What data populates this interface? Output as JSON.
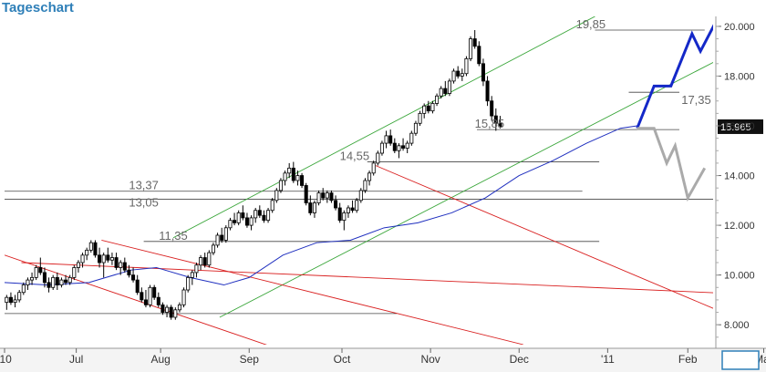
{
  "title": "Tageschart",
  "colors": {
    "title": "#2e7fb8",
    "candle_up": "#ffffff",
    "candle_down": "#000000",
    "ma": "#1f2fbf",
    "green_channel": "#3aa63a",
    "red_channel": "#d92020",
    "support_lines": "#444444",
    "projection_bull": "#1428c8",
    "projection_bear": "#aaaaaa",
    "last_price_box": "#111111"
  },
  "chart_data": {
    "type": "candlestick",
    "title": "Tageschart",
    "x_tick_labels": [
      "'10",
      "Jul",
      "Aug",
      "Sep",
      "Oct",
      "Nov",
      "Dec",
      "'11",
      "Feb",
      "Mar"
    ],
    "y_tick_labels": [
      "8.000",
      "10.000",
      "12.000",
      "14.000",
      "16.000",
      "18.000",
      "20.000"
    ],
    "y_ticks": [
      8,
      10,
      12,
      14,
      16,
      18,
      20
    ],
    "ylim": [
      7.2,
      20.4
    ],
    "xlim": [
      0,
      168
    ],
    "grid": false,
    "last_price_label": "15.965",
    "last_price": 15.965,
    "ohlc": [
      {
        "o": 8.9,
        "h": 9.2,
        "l": 8.6,
        "c": 9.1
      },
      {
        "o": 9.1,
        "h": 9.3,
        "l": 8.8,
        "c": 8.9
      },
      {
        "o": 8.9,
        "h": 9.2,
        "l": 8.7,
        "c": 9.0
      },
      {
        "o": 9.0,
        "h": 9.4,
        "l": 8.9,
        "c": 9.3
      },
      {
        "o": 9.3,
        "h": 9.7,
        "l": 9.2,
        "c": 9.6
      },
      {
        "o": 9.6,
        "h": 9.9,
        "l": 9.4,
        "c": 9.8
      },
      {
        "o": 9.8,
        "h": 10.1,
        "l": 9.6,
        "c": 9.9
      },
      {
        "o": 9.9,
        "h": 10.4,
        "l": 9.8,
        "c": 10.3
      },
      {
        "o": 10.3,
        "h": 10.7,
        "l": 10.0,
        "c": 10.1
      },
      {
        "o": 10.1,
        "h": 10.3,
        "l": 9.5,
        "c": 9.7
      },
      {
        "o": 9.7,
        "h": 9.9,
        "l": 9.3,
        "c": 9.5
      },
      {
        "o": 9.5,
        "h": 10.0,
        "l": 9.4,
        "c": 9.9
      },
      {
        "o": 9.9,
        "h": 10.1,
        "l": 9.4,
        "c": 9.6
      },
      {
        "o": 9.6,
        "h": 9.9,
        "l": 9.5,
        "c": 9.8
      },
      {
        "o": 9.8,
        "h": 10.0,
        "l": 9.6,
        "c": 9.7
      },
      {
        "o": 9.7,
        "h": 10.0,
        "l": 9.6,
        "c": 9.9
      },
      {
        "o": 9.9,
        "h": 10.4,
        "l": 9.8,
        "c": 10.3
      },
      {
        "o": 10.3,
        "h": 10.6,
        "l": 10.1,
        "c": 10.5
      },
      {
        "o": 10.5,
        "h": 10.9,
        "l": 10.3,
        "c": 10.8
      },
      {
        "o": 10.8,
        "h": 11.1,
        "l": 10.6,
        "c": 11.0
      },
      {
        "o": 11.0,
        "h": 11.4,
        "l": 10.9,
        "c": 11.3
      },
      {
        "o": 11.3,
        "h": 11.4,
        "l": 10.7,
        "c": 10.8
      },
      {
        "o": 10.8,
        "h": 11.1,
        "l": 10.3,
        "c": 10.5
      },
      {
        "o": 10.5,
        "h": 10.9,
        "l": 9.9,
        "c": 10.8
      },
      {
        "o": 10.8,
        "h": 11.1,
        "l": 10.5,
        "c": 10.6
      },
      {
        "o": 10.6,
        "h": 10.9,
        "l": 10.4,
        "c": 10.7
      },
      {
        "o": 10.7,
        "h": 10.9,
        "l": 10.2,
        "c": 10.3
      },
      {
        "o": 10.3,
        "h": 10.6,
        "l": 10.0,
        "c": 10.5
      },
      {
        "o": 10.5,
        "h": 10.7,
        "l": 10.1,
        "c": 10.2
      },
      {
        "o": 10.2,
        "h": 10.4,
        "l": 9.9,
        "c": 10.0
      },
      {
        "o": 10.0,
        "h": 10.3,
        "l": 9.7,
        "c": 9.8
      },
      {
        "o": 9.8,
        "h": 10.0,
        "l": 9.2,
        "c": 9.3
      },
      {
        "o": 9.3,
        "h": 9.5,
        "l": 8.9,
        "c": 9.0
      },
      {
        "o": 9.0,
        "h": 9.4,
        "l": 8.7,
        "c": 8.8
      },
      {
        "o": 8.8,
        "h": 9.6,
        "l": 8.7,
        "c": 9.5
      },
      {
        "o": 9.5,
        "h": 9.6,
        "l": 9.0,
        "c": 9.1
      },
      {
        "o": 9.1,
        "h": 9.3,
        "l": 8.7,
        "c": 8.8
      },
      {
        "o": 8.8,
        "h": 8.9,
        "l": 8.4,
        "c": 8.5
      },
      {
        "o": 8.5,
        "h": 8.8,
        "l": 8.3,
        "c": 8.7
      },
      {
        "o": 8.7,
        "h": 8.8,
        "l": 8.2,
        "c": 8.3
      },
      {
        "o": 8.3,
        "h": 8.7,
        "l": 8.2,
        "c": 8.6
      },
      {
        "o": 8.6,
        "h": 8.9,
        "l": 8.5,
        "c": 8.8
      },
      {
        "o": 8.8,
        "h": 9.5,
        "l": 8.7,
        "c": 9.4
      },
      {
        "o": 9.4,
        "h": 10.0,
        "l": 9.3,
        "c": 9.9
      },
      {
        "o": 9.9,
        "h": 10.2,
        "l": 9.6,
        "c": 10.1
      },
      {
        "o": 10.1,
        "h": 10.5,
        "l": 9.9,
        "c": 10.4
      },
      {
        "o": 10.4,
        "h": 10.8,
        "l": 10.2,
        "c": 10.7
      },
      {
        "o": 10.7,
        "h": 10.9,
        "l": 10.3,
        "c": 10.4
      },
      {
        "o": 10.4,
        "h": 11.0,
        "l": 10.3,
        "c": 10.9
      },
      {
        "o": 10.9,
        "h": 11.3,
        "l": 10.8,
        "c": 11.2
      },
      {
        "o": 11.2,
        "h": 11.7,
        "l": 11.1,
        "c": 11.6
      },
      {
        "o": 11.6,
        "h": 11.9,
        "l": 11.3,
        "c": 11.4
      },
      {
        "o": 11.4,
        "h": 12.0,
        "l": 11.3,
        "c": 11.9
      },
      {
        "o": 11.9,
        "h": 12.3,
        "l": 11.8,
        "c": 12.2
      },
      {
        "o": 12.2,
        "h": 12.5,
        "l": 12.0,
        "c": 12.1
      },
      {
        "o": 12.1,
        "h": 12.6,
        "l": 12.0,
        "c": 12.5
      },
      {
        "o": 12.5,
        "h": 12.8,
        "l": 12.2,
        "c": 12.3
      },
      {
        "o": 12.3,
        "h": 12.5,
        "l": 11.9,
        "c": 12.0
      },
      {
        "o": 12.0,
        "h": 12.4,
        "l": 11.8,
        "c": 12.3
      },
      {
        "o": 12.3,
        "h": 12.7,
        "l": 12.1,
        "c": 12.6
      },
      {
        "o": 12.6,
        "h": 12.8,
        "l": 12.3,
        "c": 12.4
      },
      {
        "o": 12.4,
        "h": 12.6,
        "l": 12.1,
        "c": 12.2
      },
      {
        "o": 12.2,
        "h": 12.7,
        "l": 12.1,
        "c": 12.6
      },
      {
        "o": 12.6,
        "h": 13.1,
        "l": 12.5,
        "c": 13.0
      },
      {
        "o": 13.0,
        "h": 13.5,
        "l": 12.9,
        "c": 13.4
      },
      {
        "o": 13.4,
        "h": 13.9,
        "l": 13.3,
        "c": 13.8
      },
      {
        "o": 13.8,
        "h": 14.2,
        "l": 13.6,
        "c": 14.1
      },
      {
        "o": 14.1,
        "h": 14.5,
        "l": 13.9,
        "c": 14.3
      },
      {
        "o": 14.3,
        "h": 14.55,
        "l": 13.7,
        "c": 13.8
      },
      {
        "o": 13.8,
        "h": 14.2,
        "l": 13.6,
        "c": 14.0
      },
      {
        "o": 14.0,
        "h": 14.1,
        "l": 13.5,
        "c": 13.6
      },
      {
        "o": 13.6,
        "h": 13.7,
        "l": 12.8,
        "c": 12.9
      },
      {
        "o": 12.9,
        "h": 13.2,
        "l": 12.4,
        "c": 12.5
      },
      {
        "o": 12.5,
        "h": 13.0,
        "l": 12.3,
        "c": 12.9
      },
      {
        "o": 12.9,
        "h": 13.4,
        "l": 12.8,
        "c": 13.3
      },
      {
        "o": 13.3,
        "h": 13.5,
        "l": 13.0,
        "c": 13.1
      },
      {
        "o": 13.1,
        "h": 13.4,
        "l": 12.9,
        "c": 13.3
      },
      {
        "o": 13.3,
        "h": 13.4,
        "l": 12.9,
        "c": 13.0
      },
      {
        "o": 13.0,
        "h": 13.2,
        "l": 12.6,
        "c": 12.7
      },
      {
        "o": 12.7,
        "h": 12.9,
        "l": 12.1,
        "c": 12.2
      },
      {
        "o": 12.2,
        "h": 12.6,
        "l": 11.8,
        "c": 12.5
      },
      {
        "o": 12.5,
        "h": 12.8,
        "l": 12.3,
        "c": 12.7
      },
      {
        "o": 12.7,
        "h": 13.0,
        "l": 12.5,
        "c": 12.6
      },
      {
        "o": 12.6,
        "h": 13.1,
        "l": 12.5,
        "c": 13.0
      },
      {
        "o": 13.0,
        "h": 13.5,
        "l": 12.9,
        "c": 13.4
      },
      {
        "o": 13.4,
        "h": 13.9,
        "l": 13.3,
        "c": 13.8
      },
      {
        "o": 13.8,
        "h": 14.2,
        "l": 13.6,
        "c": 14.1
      },
      {
        "o": 14.1,
        "h": 14.6,
        "l": 14.0,
        "c": 14.5
      },
      {
        "o": 14.5,
        "h": 15.0,
        "l": 14.4,
        "c": 14.9
      },
      {
        "o": 14.9,
        "h": 15.4,
        "l": 14.8,
        "c": 15.3
      },
      {
        "o": 15.3,
        "h": 15.8,
        "l": 15.1,
        "c": 15.6
      },
      {
        "o": 15.6,
        "h": 15.85,
        "l": 15.2,
        "c": 15.3
      },
      {
        "o": 15.3,
        "h": 15.5,
        "l": 14.9,
        "c": 15.0
      },
      {
        "o": 15.0,
        "h": 15.3,
        "l": 14.7,
        "c": 15.2
      },
      {
        "o": 15.2,
        "h": 15.5,
        "l": 15.0,
        "c": 15.1
      },
      {
        "o": 15.1,
        "h": 15.4,
        "l": 14.9,
        "c": 15.3
      },
      {
        "o": 15.3,
        "h": 15.8,
        "l": 15.2,
        "c": 15.7
      },
      {
        "o": 15.7,
        "h": 16.2,
        "l": 15.6,
        "c": 16.1
      },
      {
        "o": 16.1,
        "h": 16.6,
        "l": 16.0,
        "c": 16.5
      },
      {
        "o": 16.5,
        "h": 16.9,
        "l": 16.3,
        "c": 16.8
      },
      {
        "o": 16.8,
        "h": 17.0,
        "l": 16.5,
        "c": 16.6
      },
      {
        "o": 16.6,
        "h": 17.0,
        "l": 16.5,
        "c": 16.9
      },
      {
        "o": 16.9,
        "h": 17.3,
        "l": 16.8,
        "c": 17.2
      },
      {
        "o": 17.2,
        "h": 17.6,
        "l": 17.1,
        "c": 17.5
      },
      {
        "o": 17.5,
        "h": 17.8,
        "l": 17.2,
        "c": 17.3
      },
      {
        "o": 17.3,
        "h": 17.9,
        "l": 17.2,
        "c": 17.8
      },
      {
        "o": 17.8,
        "h": 18.3,
        "l": 17.7,
        "c": 18.2
      },
      {
        "o": 18.2,
        "h": 18.4,
        "l": 17.9,
        "c": 18.0
      },
      {
        "o": 18.0,
        "h": 18.3,
        "l": 17.8,
        "c": 18.1
      },
      {
        "o": 18.1,
        "h": 18.8,
        "l": 18.0,
        "c": 18.7
      },
      {
        "o": 18.7,
        "h": 19.6,
        "l": 18.6,
        "c": 19.5
      },
      {
        "o": 19.5,
        "h": 19.85,
        "l": 19.1,
        "c": 19.2
      },
      {
        "o": 19.2,
        "h": 19.4,
        "l": 18.4,
        "c": 18.5
      },
      {
        "o": 18.5,
        "h": 18.7,
        "l": 17.6,
        "c": 17.8
      },
      {
        "o": 17.8,
        "h": 18.0,
        "l": 16.8,
        "c": 17.0
      },
      {
        "o": 17.0,
        "h": 17.2,
        "l": 16.2,
        "c": 16.4
      },
      {
        "o": 16.4,
        "h": 16.7,
        "l": 15.8,
        "c": 16.1
      },
      {
        "o": 16.1,
        "h": 16.4,
        "l": 15.9,
        "c": 15.965
      }
    ],
    "moving_average": [
      {
        "x": 0,
        "y": 9.7
      },
      {
        "x": 10,
        "y": 9.6
      },
      {
        "x": 20,
        "y": 9.7
      },
      {
        "x": 30,
        "y": 10.2
      },
      {
        "x": 36,
        "y": 10.3
      },
      {
        "x": 44,
        "y": 9.9
      },
      {
        "x": 52,
        "y": 9.6
      },
      {
        "x": 58,
        "y": 9.9
      },
      {
        "x": 66,
        "y": 10.8
      },
      {
        "x": 74,
        "y": 11.3
      },
      {
        "x": 82,
        "y": 11.4
      },
      {
        "x": 90,
        "y": 11.9
      },
      {
        "x": 98,
        "y": 12.1
      },
      {
        "x": 106,
        "y": 12.5
      },
      {
        "x": 114,
        "y": 13.1
      },
      {
        "x": 122,
        "y": 14.0
      },
      {
        "x": 130,
        "y": 14.6
      },
      {
        "x": 138,
        "y": 15.3
      },
      {
        "x": 146,
        "y": 15.9
      },
      {
        "x": 150,
        "y": 16.0
      }
    ],
    "horizontal_lines": [
      {
        "y": 19.85,
        "x0": 140,
        "x1": 166,
        "label": "19,85"
      },
      {
        "y": 17.35,
        "x0": 148,
        "x1": 160,
        "label": "17,35"
      },
      {
        "y": 15.85,
        "x0": 112,
        "x1": 160,
        "label": "15,85"
      },
      {
        "y": 14.55,
        "x0": 86,
        "x1": 141,
        "label": "14,55"
      },
      {
        "y": 13.37,
        "x0": 0,
        "x1": 137,
        "label": "13,37"
      },
      {
        "y": 13.05,
        "x0": 0,
        "x1": 180,
        "label": "13,05"
      },
      {
        "y": 11.35,
        "x0": 33,
        "x1": 141,
        "label": "11,35"
      },
      {
        "y": 8.45,
        "x0": 0,
        "x1": 93,
        "label": ""
      }
    ],
    "trend_lines": [
      {
        "group": "green",
        "x0": 40,
        "y0": 11.5,
        "x1": 140,
        "y1": 20.4
      },
      {
        "group": "green",
        "x0": 51,
        "y0": 8.3,
        "x1": 180,
        "y1": 19.6
      },
      {
        "group": "red",
        "x0": 0,
        "y0": 10.8,
        "x1": 74,
        "y1": 6.5
      },
      {
        "group": "red",
        "x0": 23,
        "y0": 11.4,
        "x1": 123,
        "y1": 7.2
      },
      {
        "group": "red",
        "x0": 4,
        "y0": 10.5,
        "x1": 180,
        "y1": 9.2
      },
      {
        "group": "red",
        "x0": 88,
        "y0": 14.4,
        "x1": 180,
        "y1": 7.8
      }
    ],
    "projections": [
      {
        "group": "bull",
        "points": [
          {
            "x": 150,
            "y": 15.9
          },
          {
            "x": 154,
            "y": 17.6
          },
          {
            "x": 158,
            "y": 17.6
          },
          {
            "x": 163,
            "y": 19.7
          },
          {
            "x": 165,
            "y": 19.0
          },
          {
            "x": 169,
            "y": 20.3
          }
        ]
      },
      {
        "group": "bear",
        "points": [
          {
            "x": 150,
            "y": 15.9
          },
          {
            "x": 154,
            "y": 15.9
          },
          {
            "x": 157,
            "y": 14.5
          },
          {
            "x": 159,
            "y": 15.2
          },
          {
            "x": 162,
            "y": 13.1
          },
          {
            "x": 166,
            "y": 14.3
          }
        ]
      }
    ]
  }
}
